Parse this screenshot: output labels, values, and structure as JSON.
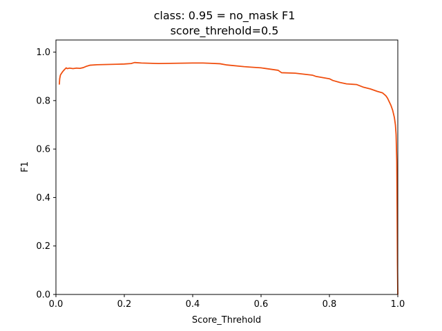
{
  "chart_data": {
    "type": "line",
    "title": "class: 0.95 = no_mask F1",
    "subtitle": "score_threhold=0.5",
    "xlabel": "Score_Threhold",
    "ylabel": "F1",
    "xlim": [
      0.0,
      1.0
    ],
    "ylim": [
      0.0,
      1.05
    ],
    "xticks": [
      "0.0",
      "0.2",
      "0.4",
      "0.6",
      "0.8",
      "1.0"
    ],
    "yticks": [
      "0.0",
      "0.2",
      "0.4",
      "0.6",
      "0.8",
      "1.0"
    ],
    "grid": false,
    "line_color": "#f04e0e",
    "series": [
      {
        "x": [
          0.01,
          0.011,
          0.013,
          0.016,
          0.02,
          0.025,
          0.03,
          0.033,
          0.04,
          0.05,
          0.06,
          0.07,
          0.08,
          0.09,
          0.1,
          0.12,
          0.15,
          0.18,
          0.2,
          0.22,
          0.23,
          0.25,
          0.3,
          0.35,
          0.4,
          0.43,
          0.45,
          0.48,
          0.5,
          0.55,
          0.57,
          0.6,
          0.65,
          0.66,
          0.7,
          0.75,
          0.76,
          0.8,
          0.81,
          0.83,
          0.85,
          0.88,
          0.9,
          0.92,
          0.94,
          0.955,
          0.965,
          0.97,
          0.975,
          0.98,
          0.985,
          0.99,
          0.993,
          0.995,
          0.997,
          0.998,
          0.999,
          1.0
        ],
        "y": [
          0.868,
          0.89,
          0.905,
          0.912,
          0.92,
          0.928,
          0.935,
          0.932,
          0.934,
          0.932,
          0.934,
          0.933,
          0.936,
          0.942,
          0.946,
          0.948,
          0.949,
          0.95,
          0.951,
          0.953,
          0.957,
          0.955,
          0.953,
          0.954,
          0.955,
          0.955,
          0.954,
          0.952,
          0.947,
          0.94,
          0.938,
          0.935,
          0.925,
          0.915,
          0.913,
          0.905,
          0.9,
          0.89,
          0.883,
          0.875,
          0.869,
          0.866,
          0.855,
          0.848,
          0.838,
          0.832,
          0.82,
          0.81,
          0.795,
          0.78,
          0.76,
          0.73,
          0.7,
          0.66,
          0.55,
          0.35,
          0.12,
          0.0
        ]
      }
    ]
  }
}
